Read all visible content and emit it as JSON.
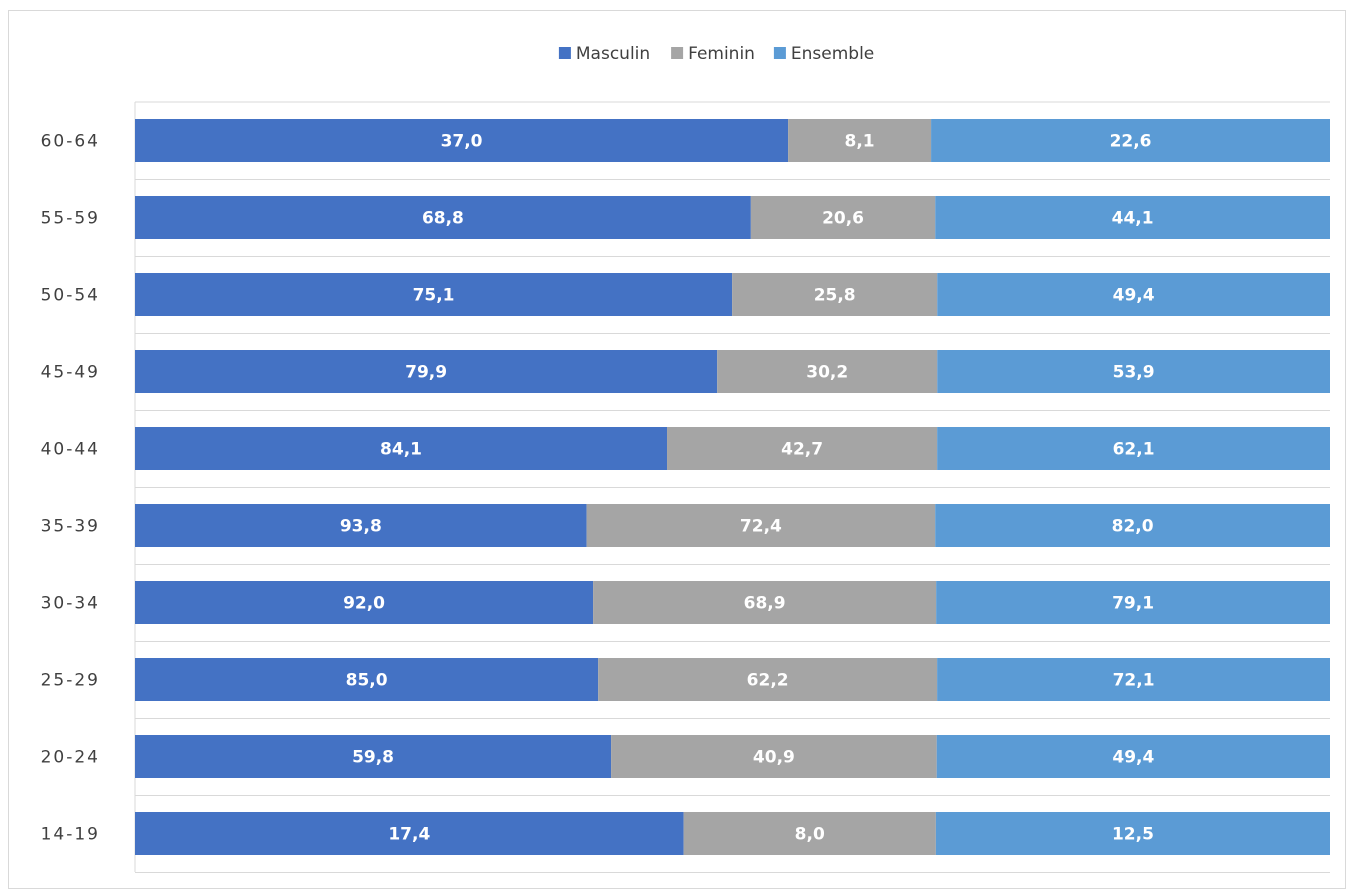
{
  "chart_data": {
    "type": "bar",
    "orientation": "horizontal",
    "stacking": "percent",
    "categories": [
      "60-64",
      "55-59",
      "50-54",
      "45-49",
      "40-44",
      "35-39",
      "30-34",
      "25-29",
      "20-24",
      "14-19"
    ],
    "series": [
      {
        "name": "Masculin",
        "color": "#4472c4",
        "values": [
          37.0,
          68.8,
          75.1,
          79.9,
          84.1,
          93.8,
          92.0,
          85.0,
          59.8,
          17.4
        ],
        "labels": [
          "37,0",
          "68,8",
          "75,1",
          "79,9",
          "84,1",
          "93,8",
          "92,0",
          "85,0",
          "59,8",
          "17,4"
        ]
      },
      {
        "name": "Feminin",
        "color": "#a5a5a5",
        "values": [
          8.1,
          20.6,
          25.8,
          30.2,
          42.7,
          72.4,
          68.9,
          62.2,
          40.9,
          8.0
        ],
        "labels": [
          "8,1",
          "20,6",
          "25,8",
          "30,2",
          "42,7",
          "72,4",
          "68,9",
          "62,2",
          "40,9",
          "8,0"
        ]
      },
      {
        "name": "Ensemble",
        "color": "#5b9bd5",
        "values": [
          22.6,
          44.1,
          49.4,
          53.9,
          62.1,
          82.0,
          79.1,
          72.1,
          49.4,
          12.5
        ],
        "labels": [
          "22,6",
          "44,1",
          "49,4",
          "53,9",
          "62,1",
          "82,0",
          "79,1",
          "72,1",
          "49,4",
          "12,5"
        ]
      }
    ],
    "title": "",
    "xlabel": "",
    "ylabel": "",
    "legend": "top-center",
    "grid": true
  }
}
